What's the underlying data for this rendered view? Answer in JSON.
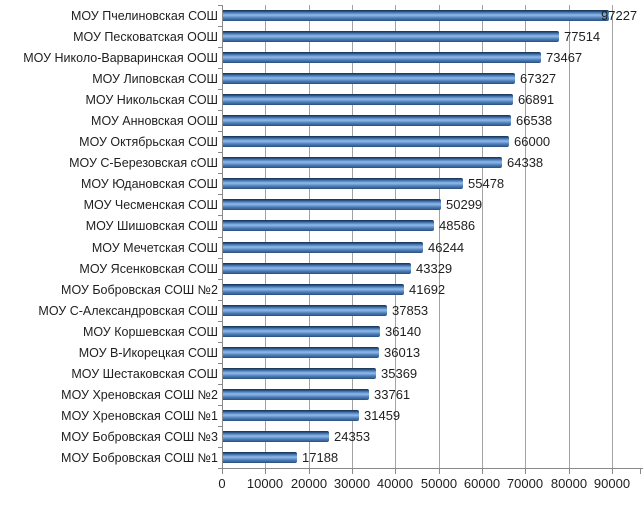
{
  "chart_data": {
    "type": "bar",
    "orientation": "horizontal",
    "title": "",
    "xlabel": "",
    "ylabel": "",
    "categories": [
      "МОУ Пчелиновская СОШ",
      "МОУ Песковатская ООШ",
      "МОУ Николо-Варваринская ООШ",
      "МОУ Липовская СОШ",
      "МОУ Никольская СОШ",
      "МОУ Анновская ООШ",
      "МОУ Октябрьская СОШ",
      "МОУ С-Березовская сОШ",
      "МОУ Юдановская СОШ",
      "МОУ Чесменская СОШ",
      "МОУ Шишовская СОШ",
      "МОУ Мечетская СОШ",
      "МОУ Ясенковская СОШ",
      "МОУ Бобровская СОШ №2",
      "МОУ С-Александровская СОШ",
      "МОУ Коршевская СОШ",
      "МОУ В-Икорецкая СОШ",
      "МОУ Шестаковская СОШ",
      "МОУ Хреновская СОШ №2",
      "МОУ Хреновская СОШ №1",
      "МОУ Бобровская СОШ №3",
      "МОУ Бобровская СОШ №1"
    ],
    "values": [
      97227,
      77514,
      73467,
      67327,
      66891,
      66538,
      66000,
      64338,
      55478,
      50299,
      48586,
      46244,
      43329,
      41692,
      37853,
      36140,
      36013,
      35369,
      33761,
      31459,
      24353,
      17188
    ],
    "data_labels": [
      "97227",
      "77514",
      "73467",
      "67327",
      "66891",
      "66538",
      "66000",
      "64338",
      "55478",
      "50299",
      "48586",
      "46244",
      "43329",
      "41692",
      "37853",
      "36140",
      "36013",
      "35369",
      "33761",
      "31459",
      "24353",
      "17188"
    ],
    "xlim": [
      0,
      90000
    ],
    "x_tick_values": [
      0,
      10000,
      20000,
      30000,
      40000,
      50000,
      60000,
      70000,
      80000,
      90000
    ],
    "x_tick_labels": [
      "0",
      "10000",
      "20000",
      "30000",
      "40000",
      "50000",
      "60000",
      "70000",
      "80000",
      "90000"
    ],
    "grid": true,
    "legend": false,
    "colors": {
      "bar_main": "#4f81bd",
      "bar_dark": "#1d3a5f",
      "bar_highlight": "#8fbae9",
      "gridline": "#a3a3a3",
      "axis": "#898989",
      "text": "#1f1f1f",
      "background": "#ffffff"
    }
  }
}
